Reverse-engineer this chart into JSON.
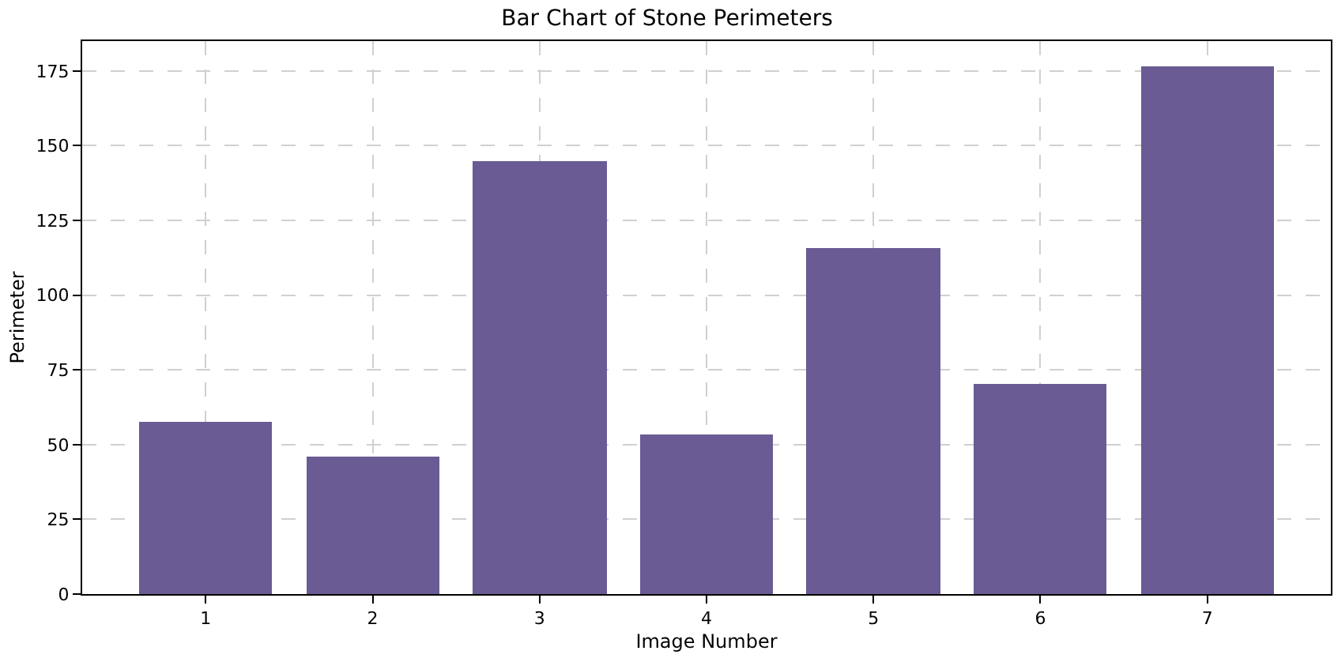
{
  "chart_data": {
    "type": "bar",
    "title": "Bar Chart of Stone Perimeters",
    "xlabel": "Image Number",
    "ylabel": "Perimeter",
    "x": [
      1,
      2,
      3,
      4,
      5,
      6,
      7
    ],
    "series": [
      {
        "color": "#6a5b94",
        "values": [
          57.5,
          46,
          145,
          53.5,
          115.5,
          70.5,
          176.5
        ]
      }
    ],
    "xlim": [
      0.26,
      7.74
    ],
    "xticks": [
      1,
      2,
      3,
      4,
      5,
      6,
      7
    ],
    "ylim": [
      0,
      185
    ],
    "yticks": [
      0,
      25,
      50,
      75,
      100,
      125,
      150,
      175
    ],
    "grid": true,
    "line_style": "dashed"
  }
}
